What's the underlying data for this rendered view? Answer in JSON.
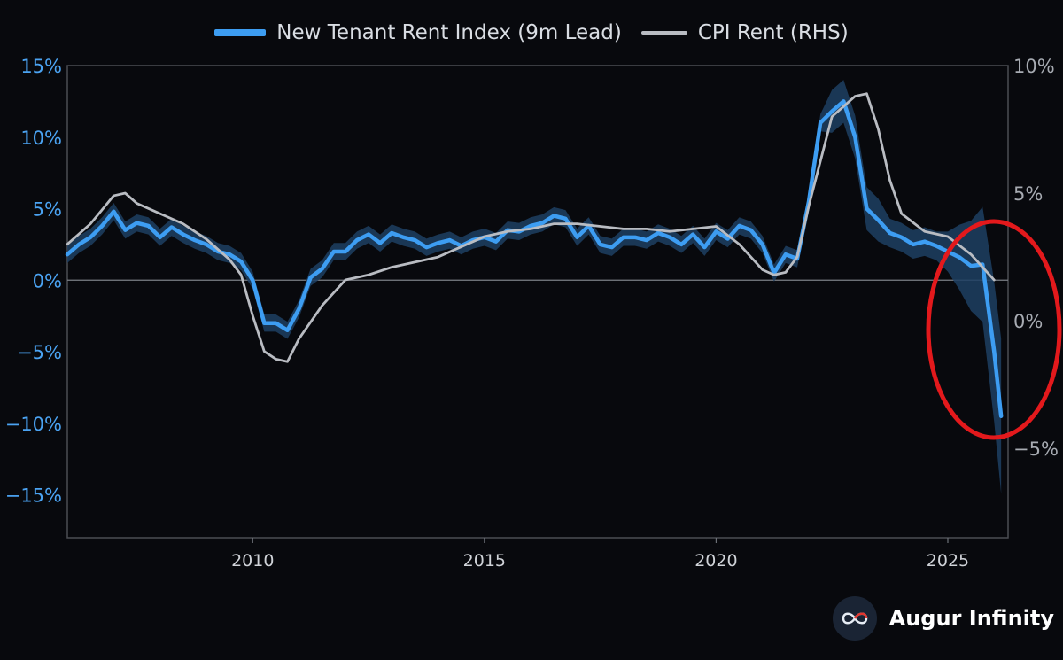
{
  "legend": {
    "series_1": "New Tenant Rent Index (9m Lead)",
    "series_2": "CPI Rent (RHS)"
  },
  "brand": {
    "name": "Augur Infinity"
  },
  "colors": {
    "background": "#08090d",
    "series_1": "#3d9df2",
    "series_1_band": "#1d3f63",
    "series_2": "#b9bcc2",
    "highlight_circle": "#e3191c"
  },
  "chart_data": {
    "type": "line",
    "title": "",
    "xlabel": "",
    "x_ticks": [
      "2010",
      "2015",
      "2020",
      "2025"
    ],
    "x_range": [
      2006.0,
      2026.3
    ],
    "y_left": {
      "range": [
        -18,
        15
      ],
      "ticks": [
        "15%",
        "10%",
        "5%",
        "0%",
        "−5%",
        "−10%",
        "−15%"
      ],
      "tick_values": [
        15,
        10,
        5,
        0,
        -5,
        -10,
        -15
      ]
    },
    "y_right": {
      "range": [
        -8.5,
        10
      ],
      "ticks": [
        "10%",
        "5%",
        "0%",
        "−5%"
      ],
      "tick_values": [
        10,
        5,
        0,
        -5
      ]
    },
    "zero_line": true,
    "series": [
      {
        "name": "New Tenant Rent Index (9m Lead)",
        "axis": "left",
        "x": [
          2006.0,
          2006.25,
          2006.5,
          2006.75,
          2007.0,
          2007.25,
          2007.5,
          2007.75,
          2008.0,
          2008.25,
          2008.5,
          2008.75,
          2009.0,
          2009.25,
          2009.5,
          2009.75,
          2010.0,
          2010.25,
          2010.5,
          2010.75,
          2011.0,
          2011.25,
          2011.5,
          2011.75,
          2012.0,
          2012.25,
          2012.5,
          2012.75,
          2013.0,
          2013.25,
          2013.5,
          2013.75,
          2014.0,
          2014.25,
          2014.5,
          2014.75,
          2015.0,
          2015.25,
          2015.5,
          2015.75,
          2016.0,
          2016.25,
          2016.5,
          2016.75,
          2017.0,
          2017.25,
          2017.5,
          2017.75,
          2018.0,
          2018.25,
          2018.5,
          2018.75,
          2019.0,
          2019.25,
          2019.5,
          2019.75,
          2020.0,
          2020.25,
          2020.5,
          2020.75,
          2021.0,
          2021.25,
          2021.5,
          2021.75,
          2022.0,
          2022.25,
          2022.5,
          2022.75,
          2023.0,
          2023.25,
          2023.5,
          2023.75,
          2024.0,
          2024.25,
          2024.5,
          2024.75,
          2025.0,
          2025.25,
          2025.5,
          2025.75,
          2026.0,
          2026.15
        ],
        "values": [
          1.8,
          2.5,
          3.0,
          3.8,
          4.8,
          3.5,
          4.0,
          3.8,
          3.0,
          3.7,
          3.2,
          2.8,
          2.5,
          2.0,
          1.8,
          1.3,
          0,
          -3.0,
          -3.0,
          -3.5,
          -2.0,
          0.2,
          0.8,
          2.0,
          2.0,
          2.8,
          3.2,
          2.6,
          3.3,
          3.0,
          2.8,
          2.3,
          2.6,
          2.8,
          2.4,
          2.8,
          3.0,
          2.7,
          3.5,
          3.4,
          3.8,
          4.0,
          4.5,
          4.3,
          3.0,
          3.8,
          2.5,
          2.3,
          3.0,
          3.0,
          2.8,
          3.3,
          3.0,
          2.5,
          3.2,
          2.3,
          3.4,
          2.9,
          3.8,
          3.5,
          2.5,
          0.5,
          1.8,
          1.5,
          5.5,
          11.0,
          11.8,
          12.5,
          10.0,
          5.0,
          4.2,
          3.3,
          3.0,
          2.5,
          2.7,
          2.4,
          2.0,
          1.6,
          1.0,
          1.1,
          -5.0,
          -9.5
        ]
      },
      {
        "name": "CPI Rent (RHS)",
        "axis": "right",
        "x": [
          2006.0,
          2006.5,
          2007.0,
          2007.25,
          2007.5,
          2008.0,
          2008.5,
          2009.0,
          2009.5,
          2009.75,
          2010.0,
          2010.25,
          2010.5,
          2010.75,
          2011.0,
          2011.5,
          2012.0,
          2012.5,
          2013.0,
          2013.5,
          2014.0,
          2014.5,
          2015.0,
          2015.5,
          2016.0,
          2016.5,
          2017.0,
          2017.5,
          2018.0,
          2018.5,
          2019.0,
          2019.5,
          2020.0,
          2020.5,
          2021.0,
          2021.25,
          2021.5,
          2021.75,
          2022.0,
          2022.5,
          2023.0,
          2023.25,
          2023.5,
          2023.75,
          2024.0,
          2024.5,
          2025.0,
          2025.5,
          2026.0
        ],
        "values": [
          3.0,
          3.8,
          4.9,
          5.0,
          4.6,
          4.2,
          3.8,
          3.2,
          2.4,
          1.8,
          0.2,
          -1.2,
          -1.5,
          -1.6,
          -0.7,
          0.6,
          1.6,
          1.8,
          2.1,
          2.3,
          2.5,
          2.9,
          3.3,
          3.5,
          3.6,
          3.8,
          3.8,
          3.7,
          3.6,
          3.6,
          3.5,
          3.6,
          3.7,
          3.0,
          2.0,
          1.8,
          1.9,
          2.5,
          4.5,
          8.0,
          8.8,
          8.9,
          7.5,
          5.5,
          4.2,
          3.5,
          3.3,
          2.6,
          1.6
        ]
      }
    ],
    "highlight": {
      "shape": "ellipse",
      "color": "#e3191c",
      "around": "2025–2026 decline"
    }
  }
}
